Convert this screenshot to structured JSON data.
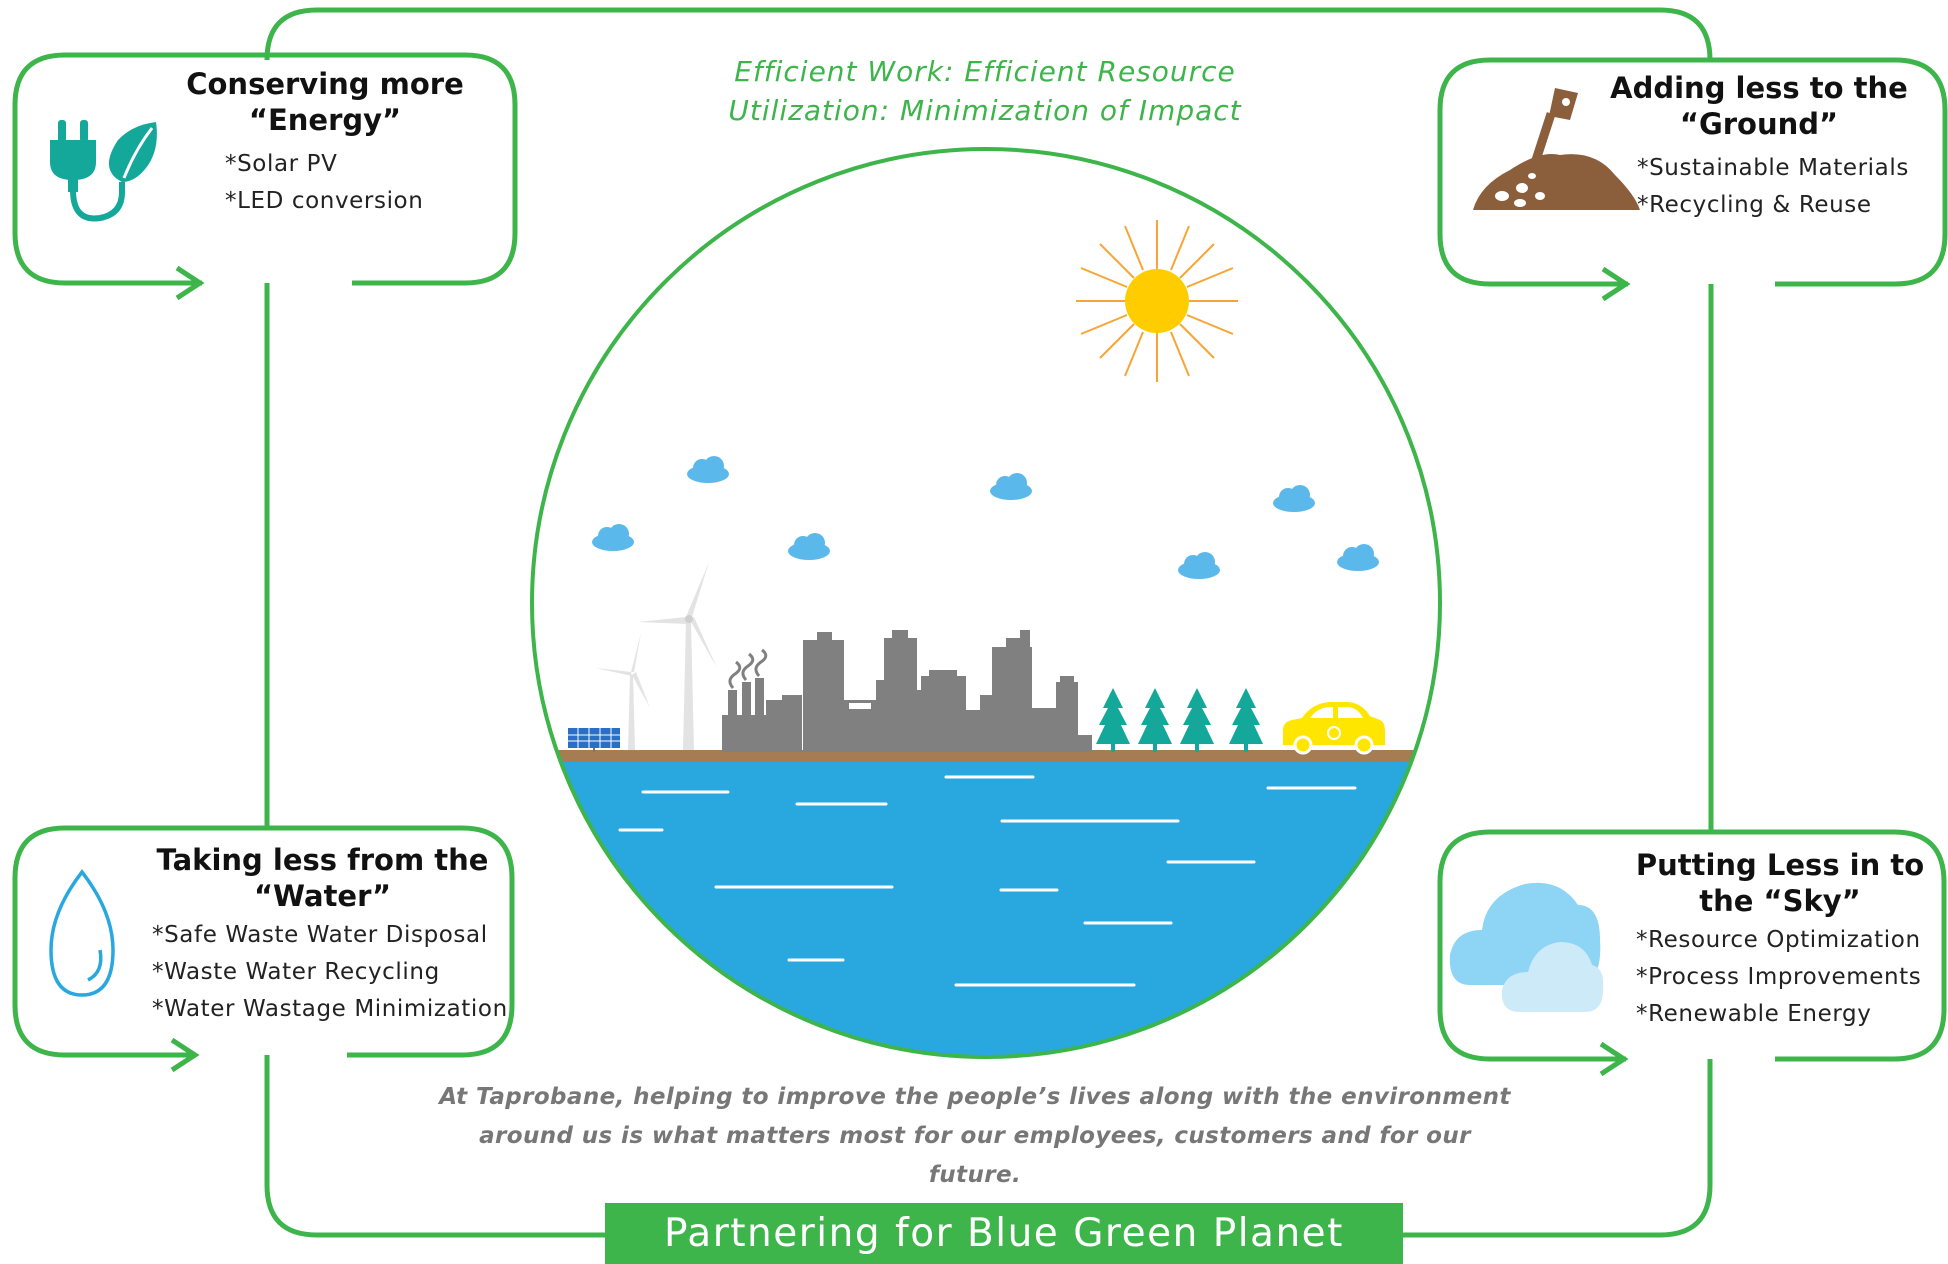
{
  "tagline": {
    "line1": "Efficient Work: Efficient Resource",
    "line2": "Utilization: Minimization of Impact"
  },
  "cards": {
    "energy": {
      "title_line1": "Conserving more",
      "title_line2": "“Energy”",
      "items": [
        "*Solar PV",
        "*LED conversion"
      ],
      "icon": "plug-leaf-icon"
    },
    "ground": {
      "title_line1": "Adding less to the",
      "title_line2": "“Ground”",
      "items": [
        "*Sustainable Materials",
        "*Recycling & Reuse"
      ],
      "icon": "shovel-soil-icon"
    },
    "water": {
      "title_line1": "Taking less from the",
      "title_line2": "“Water”",
      "items": [
        "*Safe Waste Water Disposal",
        "*Waste Water Recycling",
        "*Water Wastage Minimization"
      ],
      "icon": "water-drop-icon"
    },
    "sky": {
      "title_line1": "Putting Less in to",
      "title_line2": "the “Sky”",
      "items": [
        "*Resource Optimization",
        "*Process Improvements",
        "*Renewable Energy"
      ],
      "icon": "clouds-icon"
    }
  },
  "mission": {
    "line1": "At Taprobane, helping to improve the people’s lives along with the environment",
    "line2": "around us is what matters most for our employees, customers and for our future."
  },
  "banner": "Partnering for Blue Green Planet",
  "colors": {
    "green": "#3db54a",
    "water_blue": "#29a8e0",
    "sky_cloud": "#5bb8ea",
    "sun": "#ffcc00",
    "sun_rays": "#f7a535",
    "factory_gray": "#808080",
    "tree_teal": "#14a89a",
    "ground_brown": "#a67c52",
    "plug_teal": "#14a89a",
    "soil_brown": "#8b5e3c",
    "car_yellow": "#ffe600"
  }
}
